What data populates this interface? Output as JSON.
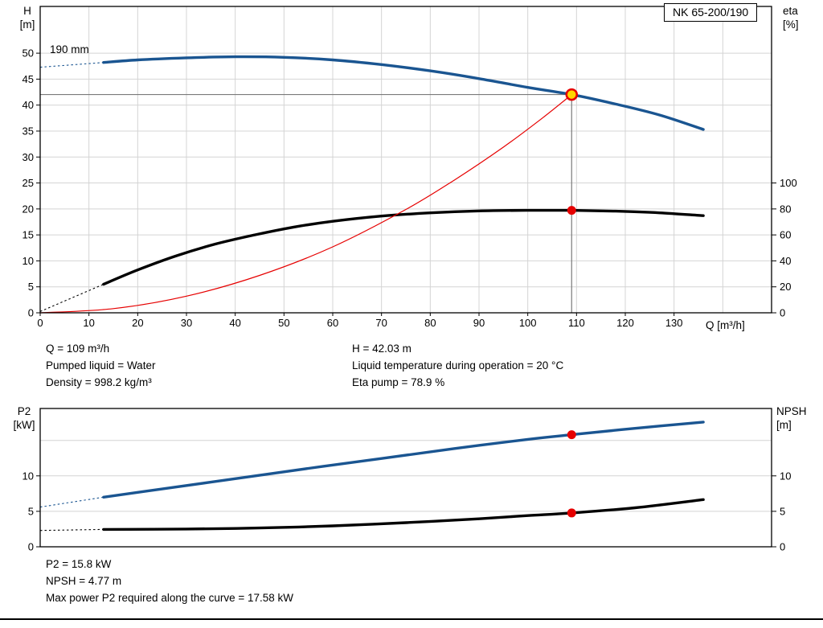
{
  "page": {
    "info_top": {
      "left": [
        "Q = 109 m³/h",
        "Pumped liquid = Water",
        "Density = 998.2 kg/m³"
      ],
      "right": [
        "H = 42.03 m",
        "Liquid temperature during operation = 20 °C",
        "Eta pump = 78.9 %"
      ]
    },
    "info_bottom": [
      "P2 = 15.8 kW",
      "NPSH = 4.77 m",
      "Max power P2 required along the curve = 17.58 kW"
    ]
  },
  "chart_data": [
    {
      "type": "line",
      "title": "NK 65-200/190",
      "xlabel": "Q [m³/h]",
      "ylabel_left": "H\n[m]",
      "ylabel_right": "eta\n[%]",
      "xlim": [
        0,
        150
      ],
      "ylim_left": [
        0,
        59
      ],
      "ylim_right": [
        0,
        236
      ],
      "x_ticks": [
        0,
        10,
        20,
        30,
        40,
        50,
        60,
        70,
        80,
        90,
        100,
        110,
        120,
        130
      ],
      "x_grid": [
        10,
        20,
        30,
        40,
        50,
        60,
        70,
        80,
        90,
        100,
        110,
        120,
        130,
        140
      ],
      "y_ticks_left": [
        0,
        5,
        10,
        15,
        20,
        25,
        30,
        35,
        40,
        45,
        50
      ],
      "y_grid": [
        5,
        10,
        15,
        20,
        25,
        30,
        35,
        40,
        45,
        50
      ],
      "y_ticks_right": [
        0,
        20,
        40,
        60,
        80,
        100
      ],
      "series": [
        {
          "name": "head-curve",
          "label": "190 mm",
          "color": "#1a5591",
          "width": 3.4,
          "axis": "left",
          "dash_lead": [
            [
              0,
              47.3
            ],
            [
              13,
              48.2
            ]
          ],
          "points": [
            [
              13,
              48.2
            ],
            [
              20,
              48.7
            ],
            [
              30,
              49.1
            ],
            [
              40,
              49.3
            ],
            [
              50,
              49.2
            ],
            [
              60,
              48.7
            ],
            [
              70,
              47.8
            ],
            [
              80,
              46.6
            ],
            [
              90,
              45.1
            ],
            [
              100,
              43.4
            ],
            [
              109,
              42.03
            ],
            [
              118,
              40.2
            ],
            [
              127,
              38.1
            ],
            [
              136,
              35.3
            ]
          ]
        },
        {
          "name": "efficiency-curve",
          "color": "#000000",
          "width": 3.4,
          "axis": "right",
          "dash_lead": [
            [
              0,
              1
            ],
            [
              13,
              22
            ]
          ],
          "points": [
            [
              13,
              22
            ],
            [
              20,
              33
            ],
            [
              28,
              44
            ],
            [
              36,
              53
            ],
            [
              44,
              60
            ],
            [
              52,
              66
            ],
            [
              60,
              70.5
            ],
            [
              70,
              74.5
            ],
            [
              80,
              77
            ],
            [
              90,
              78.5
            ],
            [
              100,
              78.9
            ],
            [
              109,
              78.9
            ],
            [
              118,
              78.3
            ],
            [
              127,
              77
            ],
            [
              136,
              74.8
            ]
          ]
        },
        {
          "name": "system-curve",
          "color": "#e60000",
          "width": 1.2,
          "axis": "left",
          "dash_lead": [],
          "points": [
            [
              0,
              0
            ],
            [
              15,
              0.8
            ],
            [
              30,
              3.2
            ],
            [
              45,
              7.2
            ],
            [
              60,
              12.7
            ],
            [
              75,
              19.9
            ],
            [
              85,
              25.6
            ],
            [
              95,
              31.9
            ],
            [
              103,
              37.5
            ],
            [
              109,
              42.03
            ]
          ]
        }
      ],
      "markers": [
        {
          "name": "duty-point",
          "x": 109,
          "y": 42.03,
          "axis": "left",
          "r": 6.5,
          "fill": "#ffd700",
          "stroke": "#e60000",
          "stroke_width": 2.5
        },
        {
          "name": "eta-point",
          "x": 109,
          "y": 78.9,
          "axis": "right",
          "r": 5.5,
          "fill": "#e60000",
          "stroke": "none",
          "stroke_width": 0
        }
      ],
      "crosshair": {
        "x": 109,
        "y": 42.03,
        "color": "#7a7a7a"
      }
    },
    {
      "type": "line",
      "title": "",
      "xlabel": "",
      "ylabel_left": "P2\n[kW]",
      "ylabel_right": "NPSH\n[m]",
      "xlim": [
        0,
        150
      ],
      "ylim_left": [
        0,
        19.5
      ],
      "ylim_right": [
        0,
        19.5
      ],
      "x_ticks": [],
      "x_grid": [],
      "y_ticks_left": [
        0,
        5,
        10
      ],
      "y_grid": [
        5,
        10,
        15
      ],
      "y_ticks_right": [
        0,
        5,
        10
      ],
      "series": [
        {
          "name": "p2-curve",
          "color": "#1a5591",
          "width": 3.4,
          "axis": "left",
          "dash_lead": [
            [
              0,
              5.6
            ],
            [
              13,
              7.0
            ]
          ],
          "points": [
            [
              13,
              7.0
            ],
            [
              25,
              8.15
            ],
            [
              40,
              9.6
            ],
            [
              55,
              11.05
            ],
            [
              70,
              12.45
            ],
            [
              85,
              13.85
            ],
            [
              100,
              15.15
            ],
            [
              109,
              15.8
            ],
            [
              122,
              16.7
            ],
            [
              136,
              17.58
            ]
          ]
        },
        {
          "name": "npsh-curve",
          "color": "#000000",
          "width": 3.4,
          "axis": "right",
          "dash_lead": [
            [
              0,
              2.3
            ],
            [
              13,
              2.45
            ]
          ],
          "points": [
            [
              13,
              2.45
            ],
            [
              30,
              2.5
            ],
            [
              45,
              2.65
            ],
            [
              60,
              2.95
            ],
            [
              75,
              3.4
            ],
            [
              90,
              3.95
            ],
            [
              100,
              4.4
            ],
            [
              109,
              4.77
            ],
            [
              122,
              5.5
            ],
            [
              136,
              6.65
            ]
          ]
        }
      ],
      "markers": [
        {
          "name": "p2-point",
          "x": 109,
          "y": 15.8,
          "axis": "left",
          "r": 5.5,
          "fill": "#e60000",
          "stroke": "none",
          "stroke_width": 0
        },
        {
          "name": "npsh-point",
          "x": 109,
          "y": 4.77,
          "axis": "right",
          "r": 5.5,
          "fill": "#e60000",
          "stroke": "none",
          "stroke_width": 0
        }
      ],
      "crosshair": null
    }
  ]
}
